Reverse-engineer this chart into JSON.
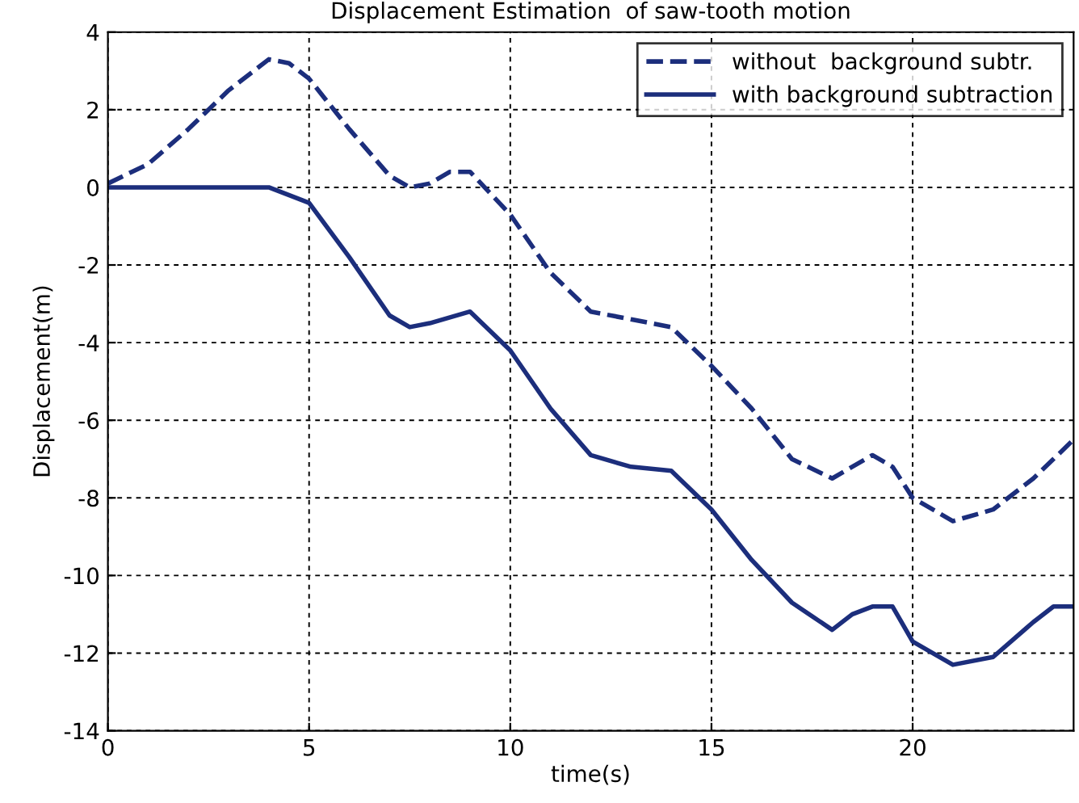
{
  "chart_data": {
    "type": "line",
    "title": "Displacement Estimation  of saw-tooth motion",
    "xlabel": "time(s)",
    "ylabel": "Displacement(m)",
    "xlim": [
      0,
      24
    ],
    "xticks": [
      0,
      5,
      10,
      15,
      20
    ],
    "ylim": [
      -14,
      4
    ],
    "yticks": [
      -14,
      -12,
      -10,
      -8,
      -6,
      -4,
      -2,
      0,
      2,
      4
    ],
    "grid": true,
    "legend": "top right",
    "series": [
      {
        "name": "without  background subtr.",
        "color": "#1c2e7c",
        "line_style": "dashed",
        "x": [
          0,
          1,
          2,
          3,
          4,
          4.5,
          5,
          6,
          7,
          7.5,
          8,
          8.5,
          9,
          10,
          11,
          12,
          13,
          14,
          15,
          16,
          17,
          18,
          19,
          19.5,
          20,
          21,
          22,
          23,
          24
        ],
        "values": [
          0.1,
          0.6,
          1.5,
          2.5,
          3.3,
          3.2,
          2.8,
          1.5,
          0.3,
          0.0,
          0.1,
          0.4,
          0.4,
          -0.7,
          -2.2,
          -3.2,
          -3.4,
          -3.6,
          -4.6,
          -5.7,
          -7.0,
          -7.5,
          -6.9,
          -7.2,
          -8.0,
          -8.6,
          -8.3,
          -7.5,
          -6.5
        ]
      },
      {
        "name": "with background subtraction",
        "color": "#1c2e7c",
        "line_style": "solid",
        "x": [
          0,
          1,
          2,
          3,
          4,
          5,
          6,
          7,
          7.5,
          8,
          9,
          10,
          11,
          12,
          13,
          14,
          15,
          16,
          17,
          18,
          18.5,
          19,
          19.5,
          20,
          21,
          22,
          23,
          23.5,
          24
        ],
        "values": [
          0,
          0,
          0,
          0,
          0,
          -0.4,
          -1.8,
          -3.3,
          -3.6,
          -3.5,
          -3.2,
          -4.2,
          -5.7,
          -6.9,
          -7.2,
          -7.3,
          -8.3,
          -9.6,
          -10.7,
          -11.4,
          -11.0,
          -10.8,
          -10.8,
          -11.7,
          -12.3,
          -12.1,
          -11.2,
          -10.8,
          -10.8
        ]
      }
    ]
  }
}
